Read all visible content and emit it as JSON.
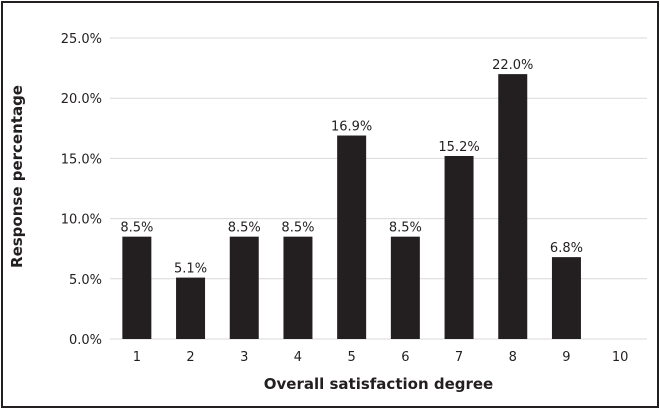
{
  "chart_data": {
    "type": "bar",
    "categories": [
      "1",
      "2",
      "3",
      "4",
      "5",
      "6",
      "7",
      "8",
      "9",
      "10"
    ],
    "values": [
      8.5,
      5.1,
      8.5,
      8.5,
      16.9,
      8.5,
      15.2,
      22.0,
      6.8,
      null
    ],
    "data_labels": [
      "8.5%",
      "5.1%",
      "8.5%",
      "8.5%",
      "16.9%",
      "8.5%",
      "15.2%",
      "22.0%",
      "6.8%",
      ""
    ],
    "y_ticks": [
      "0.0%",
      "5.0%",
      "10.0%",
      "15.0%",
      "20.0%",
      "25.0%"
    ],
    "xlabel": "Overall satisfaction degree",
    "ylabel": "Response percentage",
    "ylim": [
      0,
      25
    ],
    "grid": true,
    "legend": "none",
    "bar_color": "#231f20",
    "grid_color": "#d9d9d9"
  }
}
